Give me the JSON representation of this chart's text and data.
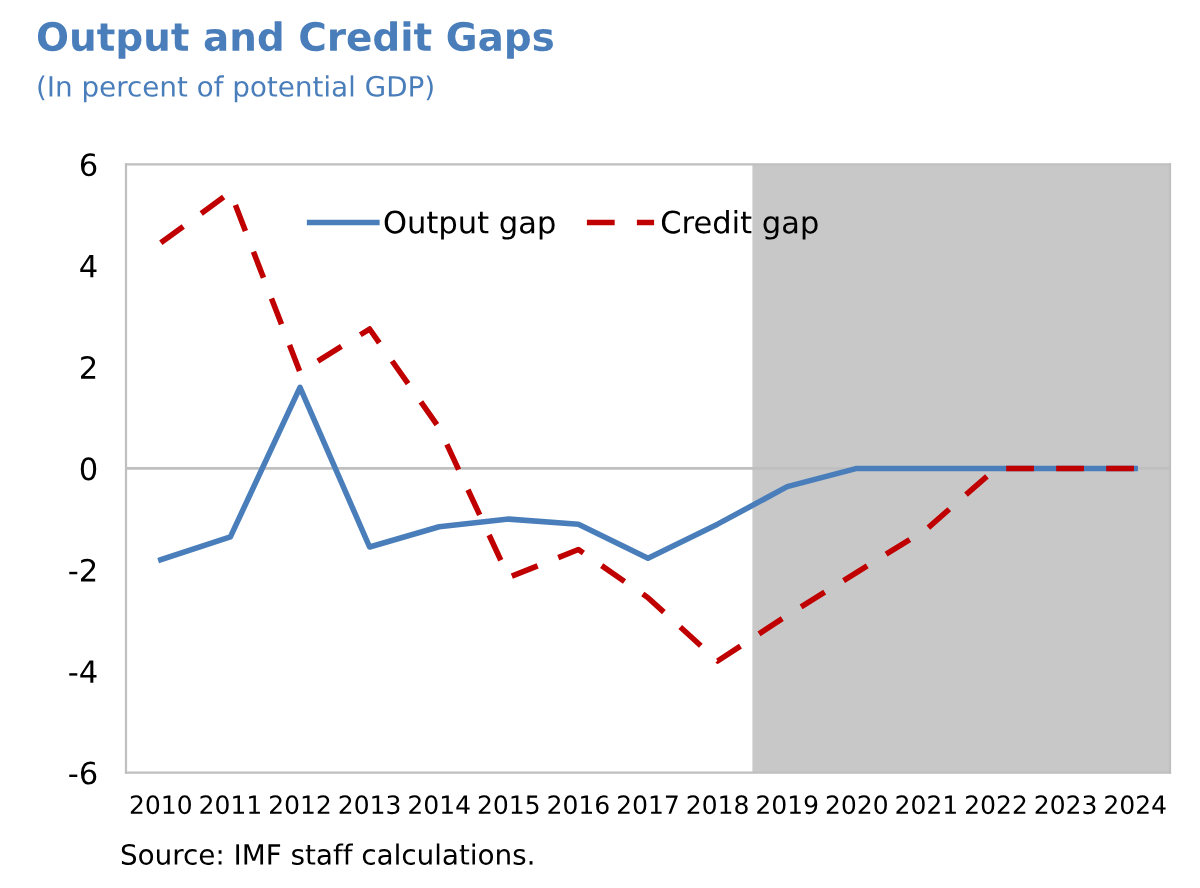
{
  "chart_data": {
    "type": "line",
    "title": "Output and Credit Gaps",
    "subtitle": "(In percent of potential GDP)",
    "x": [
      2010,
      2011,
      2012,
      2013,
      2014,
      2015,
      2016,
      2017,
      2018,
      2019,
      2020,
      2021,
      2022,
      2023,
      2024
    ],
    "series": [
      {
        "name": "Output gap",
        "color": "#4a7ebb",
        "line_style": "solid",
        "values": [
          -1.8,
          -1.35,
          1.6,
          -1.55,
          -1.15,
          -1.0,
          -1.1,
          -1.77,
          -1.1,
          -0.36,
          0,
          0,
          0,
          0,
          0
        ]
      },
      {
        "name": "Credit gap",
        "color": "#c00000",
        "line_style": "dashed",
        "values": [
          4.45,
          5.45,
          1.9,
          2.75,
          0.8,
          -2.15,
          -1.6,
          -2.55,
          -3.8,
          -2.9,
          -2.05,
          -1.2,
          0,
          0,
          0
        ]
      }
    ],
    "xlim": [
      2009.5,
      2024.5
    ],
    "xticks": [
      2010,
      2011,
      2012,
      2013,
      2014,
      2015,
      2016,
      2017,
      2018,
      2019,
      2020,
      2021,
      2022,
      2023,
      2024
    ],
    "ylim": [
      -6,
      6
    ],
    "yticks": [
      -6,
      -4,
      -2,
      0,
      2,
      4,
      6
    ],
    "ref_lines": [
      {
        "axis": "y",
        "value": 0,
        "label": null,
        "color": "#bfbfbf"
      }
    ],
    "bands": [
      {
        "axis": "x",
        "from": 2018.5,
        "to": 2024.5,
        "label": null,
        "color": "#c8c8c8"
      }
    ],
    "grid": false,
    "legend": "top",
    "marker": "none",
    "annotations": [
      "Source: IMF staff calculations."
    ]
  }
}
